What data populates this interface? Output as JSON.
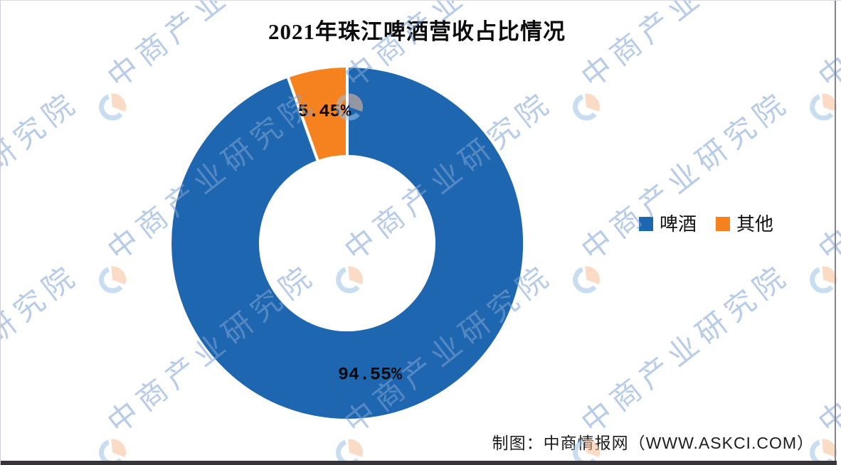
{
  "chart_data": {
    "type": "pie",
    "subtype": "donut",
    "title": "2021年珠江啤酒营收占比情况",
    "series": [
      {
        "name": "啤酒",
        "value": 94.55,
        "label": "94.55%",
        "color": "#1E67B0"
      },
      {
        "name": "其他",
        "value": 5.45,
        "label": "5.45%",
        "color": "#F5821F"
      }
    ],
    "start_angle_deg": 0,
    "direction": "clockwise",
    "inner_radius_ratio": 0.49,
    "legend_position": "right",
    "data_labels": "percent",
    "grid": false
  },
  "footer": {
    "source_note": "制图：中商情报网（WWW.ASKCI.COM）"
  },
  "watermark": {
    "text": "中商产业研究院",
    "logo_crescent_color": "#9CC3E5",
    "logo_wedge_color": "#F6BE98"
  }
}
